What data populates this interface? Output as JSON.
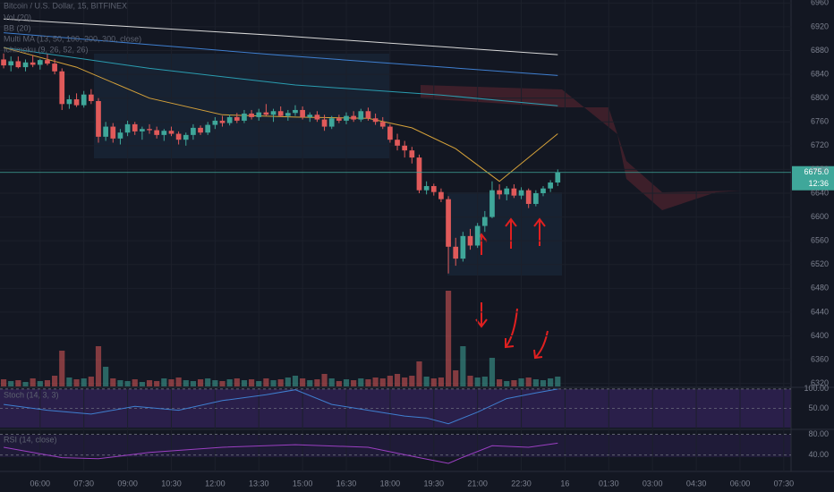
{
  "chart_data": {
    "type": "candlestick",
    "title": "Bitcoin / U.S. Dollar, 15, BITFINEX",
    "indicator_labels": [
      "Vol (20)",
      "BB (20)",
      "Multi MA (13, 50, 100, 200, 300, close)",
      "Ichimoku (9, 26, 52, 26)"
    ],
    "up_color": "#3fa79a",
    "down_color": "#e05a5a",
    "xlim": [
      -0.5,
      108
    ],
    "xticks": [
      {
        "value": 5,
        "label": "06:00"
      },
      {
        "value": 11,
        "label": "07:30"
      },
      {
        "value": 17,
        "label": "09:00"
      },
      {
        "value": 23,
        "label": "10:30"
      },
      {
        "value": 29,
        "label": "12:00"
      },
      {
        "value": 35,
        "label": "13:30"
      },
      {
        "value": 41,
        "label": "15:00"
      },
      {
        "value": 47,
        "label": "16:30"
      },
      {
        "value": 53,
        "label": "18:00"
      },
      {
        "value": 59,
        "label": "19:30"
      },
      {
        "value": 65,
        "label": "21:00"
      },
      {
        "value": 71,
        "label": "22:30"
      },
      {
        "value": 77,
        "label": "16"
      },
      {
        "value": 83,
        "label": "01:30"
      },
      {
        "value": 89,
        "label": "03:00"
      },
      {
        "value": 95,
        "label": "04:30"
      },
      {
        "value": 101,
        "label": "06:00"
      },
      {
        "value": 107,
        "label": "07:30"
      }
    ],
    "ylim": [
      6315,
      6965
    ],
    "yticks": [
      6320,
      6360,
      6400,
      6440,
      6480,
      6520,
      6560,
      6600,
      6640,
      6680,
      6720,
      6760,
      6800,
      6840,
      6880,
      6920,
      6960
    ],
    "last_price": {
      "value": 6675,
      "label": "6675.0"
    },
    "countdown": "12:36",
    "ohlc": [
      [
        6865,
        6875,
        6850,
        6855
      ],
      [
        6855,
        6870,
        6845,
        6862
      ],
      [
        6862,
        6870,
        6850,
        6852
      ],
      [
        6852,
        6865,
        6845,
        6860
      ],
      [
        6860,
        6872,
        6852,
        6856
      ],
      [
        6856,
        6866,
        6848,
        6864
      ],
      [
        6864,
        6874,
        6855,
        6858
      ],
      [
        6858,
        6866,
        6840,
        6845
      ],
      [
        6845,
        6850,
        6780,
        6790
      ],
      [
        6790,
        6805,
        6782,
        6798
      ],
      [
        6798,
        6808,
        6785,
        6788
      ],
      [
        6788,
        6812,
        6784,
        6806
      ],
      [
        6806,
        6815,
        6790,
        6795
      ],
      [
        6795,
        6800,
        6725,
        6735
      ],
      [
        6735,
        6760,
        6728,
        6752
      ],
      [
        6752,
        6758,
        6725,
        6732
      ],
      [
        6732,
        6748,
        6722,
        6742
      ],
      [
        6742,
        6762,
        6736,
        6756
      ],
      [
        6756,
        6760,
        6738,
        6744
      ],
      [
        6744,
        6752,
        6730,
        6748
      ],
      [
        6748,
        6756,
        6740,
        6746
      ],
      [
        6746,
        6752,
        6732,
        6738
      ],
      [
        6738,
        6748,
        6728,
        6745
      ],
      [
        6745,
        6752,
        6736,
        6740
      ],
      [
        6740,
        6744,
        6722,
        6730
      ],
      [
        6730,
        6742,
        6720,
        6738
      ],
      [
        6738,
        6756,
        6730,
        6750
      ],
      [
        6750,
        6754,
        6738,
        6742
      ],
      [
        6742,
        6760,
        6738,
        6755
      ],
      [
        6755,
        6768,
        6748,
        6762
      ],
      [
        6762,
        6770,
        6752,
        6758
      ],
      [
        6758,
        6772,
        6754,
        6768
      ],
      [
        6768,
        6775,
        6758,
        6762
      ],
      [
        6762,
        6780,
        6758,
        6774
      ],
      [
        6774,
        6780,
        6764,
        6768
      ],
      [
        6768,
        6782,
        6762,
        6776
      ],
      [
        6776,
        6790,
        6770,
        6772
      ],
      [
        6772,
        6782,
        6760,
        6778
      ],
      [
        6778,
        6786,
        6768,
        6770
      ],
      [
        6770,
        6780,
        6762,
        6775
      ],
      [
        6775,
        6788,
        6770,
        6780
      ],
      [
        6780,
        6786,
        6764,
        6768
      ],
      [
        6768,
        6776,
        6760,
        6772
      ],
      [
        6772,
        6778,
        6760,
        6764
      ],
      [
        6764,
        6772,
        6745,
        6752
      ],
      [
        6752,
        6770,
        6748,
        6766
      ],
      [
        6766,
        6772,
        6758,
        6762
      ],
      [
        6762,
        6776,
        6756,
        6770
      ],
      [
        6770,
        6778,
        6760,
        6764
      ],
      [
        6764,
        6782,
        6760,
        6778
      ],
      [
        6778,
        6784,
        6762,
        6766
      ],
      [
        6766,
        6774,
        6755,
        6760
      ],
      [
        6760,
        6768,
        6748,
        6752
      ],
      [
        6752,
        6756,
        6725,
        6730
      ],
      [
        6730,
        6740,
        6712,
        6720
      ],
      [
        6720,
        6728,
        6700,
        6712
      ],
      [
        6712,
        6718,
        6690,
        6700
      ],
      [
        6700,
        6705,
        6640,
        6645
      ],
      [
        6645,
        6660,
        6638,
        6652
      ],
      [
        6652,
        6656,
        6636,
        6642
      ],
      [
        6642,
        6648,
        6625,
        6630
      ],
      [
        6630,
        6635,
        6505,
        6550
      ],
      [
        6550,
        6565,
        6518,
        6530
      ],
      [
        6530,
        6575,
        6525,
        6568
      ],
      [
        6568,
        6580,
        6545,
        6552
      ],
      [
        6552,
        6590,
        6548,
        6585
      ],
      [
        6585,
        6610,
        6575,
        6600
      ],
      [
        6600,
        6660,
        6598,
        6645
      ],
      [
        6645,
        6655,
        6630,
        6638
      ],
      [
        6638,
        6652,
        6628,
        6648
      ],
      [
        6648,
        6655,
        6632,
        6636
      ],
      [
        6636,
        6650,
        6630,
        6645
      ],
      [
        6645,
        6648,
        6615,
        6622
      ],
      [
        6622,
        6645,
        6618,
        6640
      ],
      [
        6640,
        6652,
        6635,
        6648
      ],
      [
        6648,
        6662,
        6642,
        6658
      ],
      [
        6658,
        6680,
        6652,
        6675
      ]
    ],
    "volume": [
      8,
      6,
      7,
      5,
      9,
      6,
      7,
      12,
      40,
      10,
      8,
      9,
      11,
      45,
      22,
      9,
      7,
      6,
      8,
      5,
      7,
      6,
      9,
      8,
      10,
      7,
      6,
      8,
      9,
      7,
      6,
      8,
      9,
      7,
      8,
      6,
      9,
      7,
      8,
      10,
      12,
      9,
      7,
      8,
      14,
      9,
      6,
      8,
      7,
      9,
      8,
      10,
      9,
      12,
      14,
      10,
      12,
      28,
      11,
      9,
      10,
      107,
      18,
      45,
      12,
      10,
      11,
      32,
      8,
      6,
      7,
      9,
      10,
      8,
      7,
      9,
      11
    ],
    "volume_lim": [
      0,
      120
    ],
    "moving_averages": [
      {
        "color": "#d8d8d8",
        "x": [
          0,
          38,
          76
        ],
        "values": [
          6933,
          6905,
          6873
        ]
      },
      {
        "color": "#3f7fd0",
        "x": [
          0,
          38,
          76
        ],
        "values": [
          6910,
          6872,
          6838
        ]
      },
      {
        "color": "#2a9db0",
        "x": [
          0,
          20,
          40,
          60,
          76
        ],
        "values": [
          6885,
          6850,
          6822,
          6805,
          6787
        ]
      },
      {
        "color": "#d6a23a",
        "x": [
          0,
          10,
          20,
          30,
          40,
          50,
          56,
          62,
          68,
          76
        ],
        "values": [
          6885,
          6852,
          6800,
          6772,
          6768,
          6766,
          6750,
          6715,
          6660,
          6740
        ]
      }
    ],
    "stoch_label": "Stoch (14, 3, 3)",
    "stoch_lim": [
      0,
      102
    ],
    "stoch_yticks": [
      {
        "value": 100,
        "label": "100.00"
      },
      {
        "value": 50,
        "label": "50.00"
      }
    ],
    "stoch": {
      "color": "#3f7fd0",
      "x": [
        0,
        6,
        12,
        18,
        24,
        30,
        36,
        40,
        45,
        50,
        55,
        58,
        61,
        65,
        69,
        73,
        76
      ],
      "values": [
        60,
        45,
        35,
        55,
        45,
        70,
        85,
        98,
        60,
        45,
        30,
        25,
        10,
        40,
        75,
        90,
        100
      ]
    },
    "rsi_label": "RSI (14, close)",
    "rsi_lim": [
      12,
      86
    ],
    "rsi_yticks": [
      {
        "value": 80,
        "label": "80.00"
      },
      {
        "value": 40,
        "label": "40.00"
      }
    ],
    "rsi": {
      "color": "#9b3fc2",
      "x": [
        0,
        8,
        13,
        20,
        30,
        40,
        50,
        57,
        61,
        63,
        67,
        72,
        76
      ],
      "values": [
        55,
        35,
        33,
        45,
        55,
        60,
        55,
        35,
        24,
        36,
        58,
        55,
        63
      ]
    }
  }
}
